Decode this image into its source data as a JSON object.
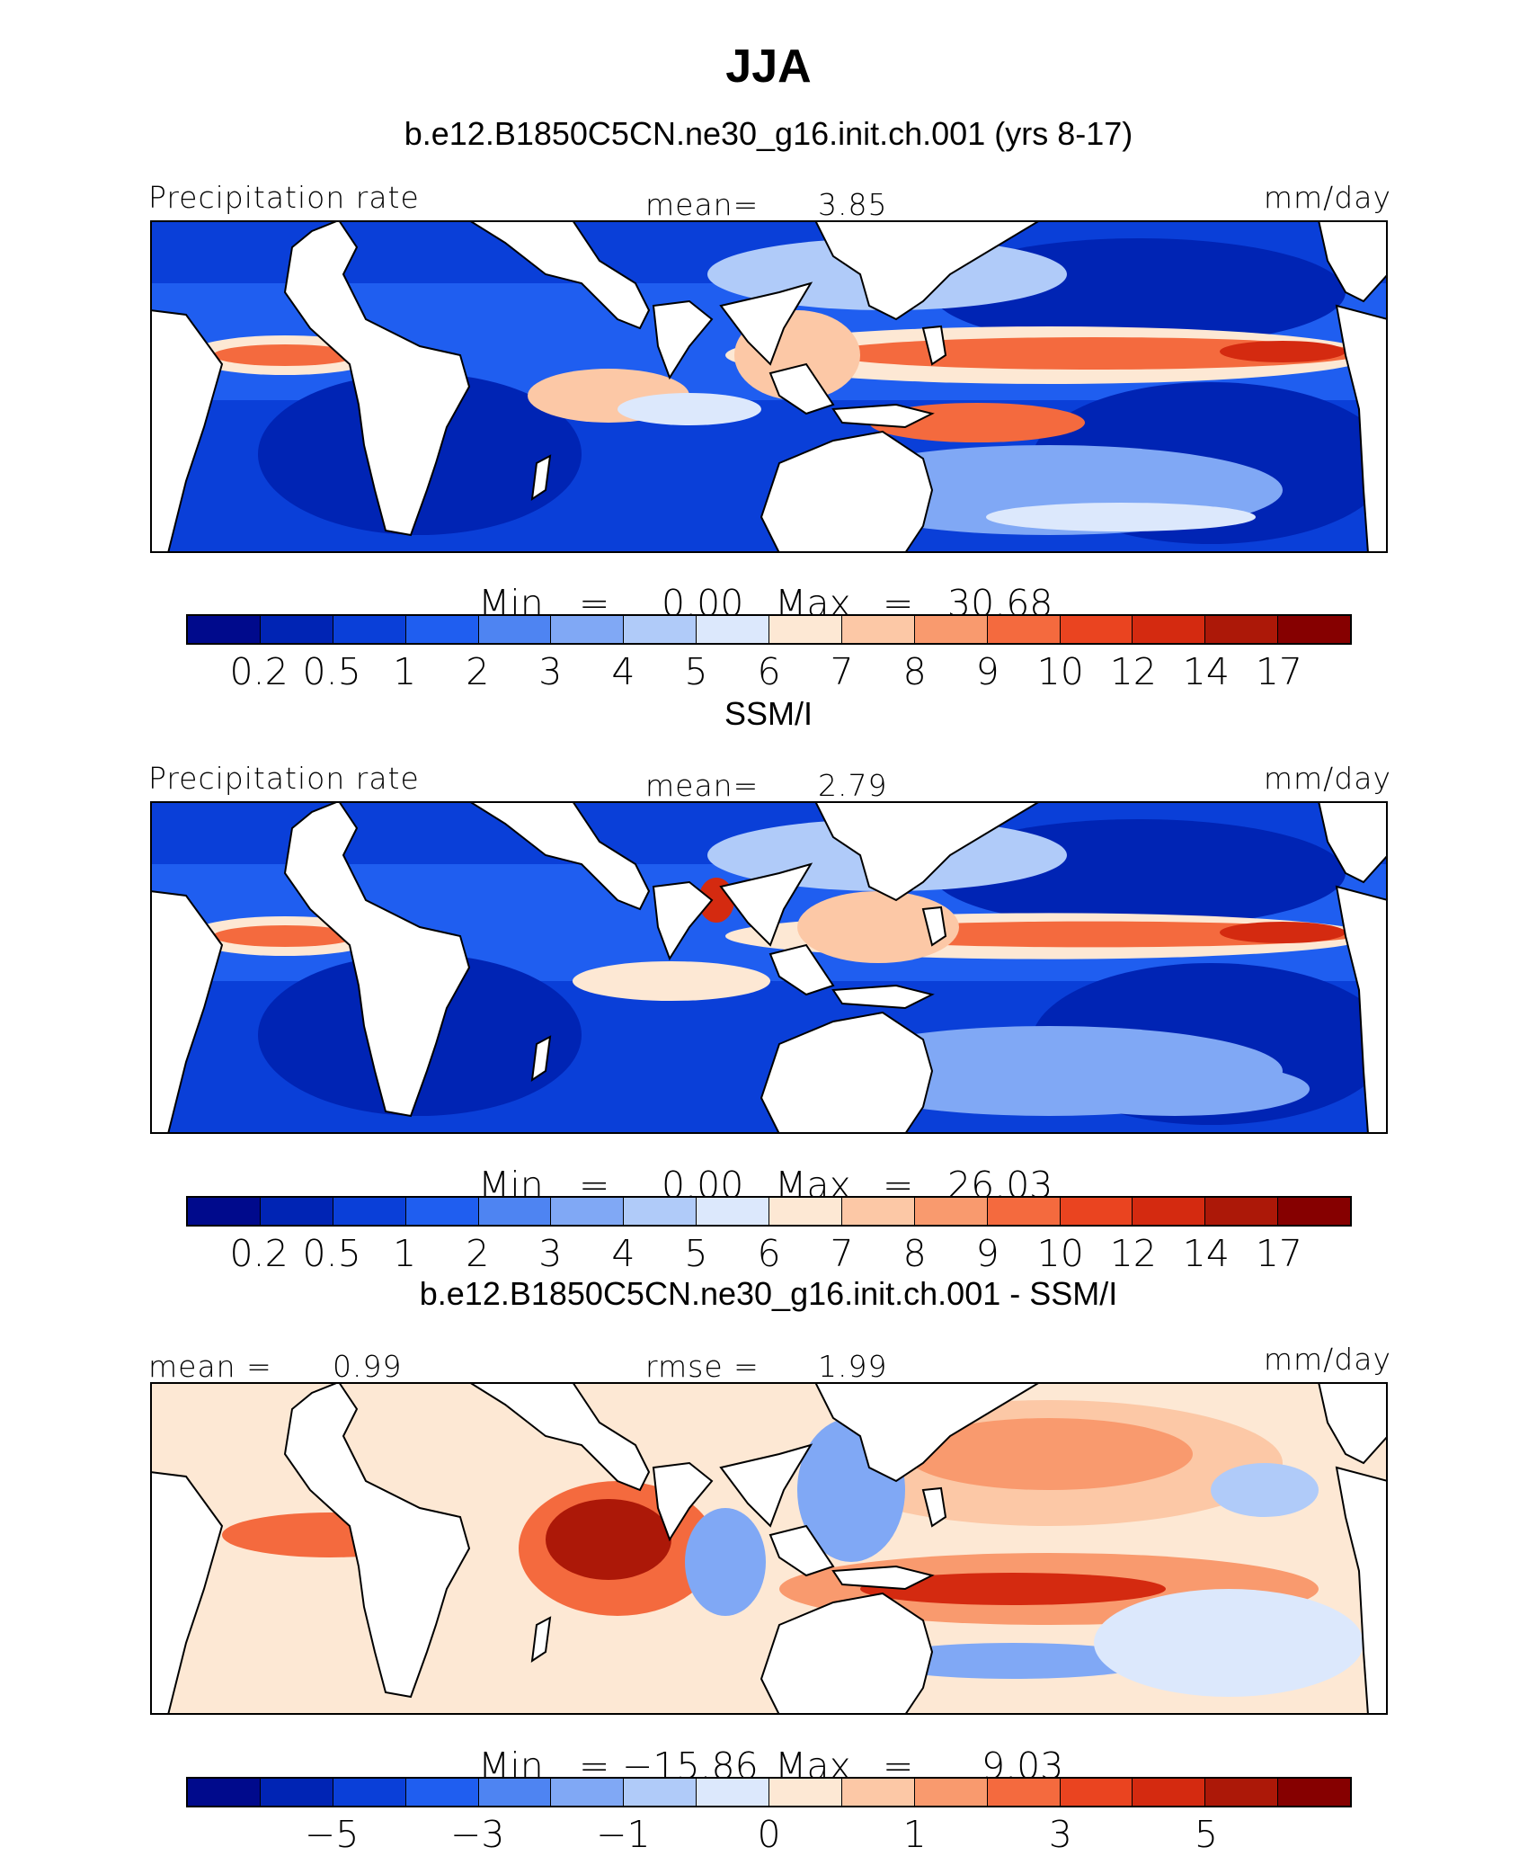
{
  "title": "JJA",
  "panels": [
    {
      "subtitle": "b.e12.B1850C5CN.ne30_g16.init.ch.001 (yrs 8-17)",
      "left_label": "Precipitation rate",
      "center_label": "mean=",
      "center_value": "3.85",
      "right_label": "mm/day",
      "min_label": "Min",
      "min_eq": "=",
      "min_value": "0.00",
      "max_label": "Max",
      "max_eq": "=",
      "max_value": "30.68",
      "tick_labels": [
        "0.2",
        "0.5",
        "1",
        "2",
        "3",
        "4",
        "5",
        "6",
        "7",
        "8",
        "9",
        "10",
        "12",
        "14",
        "17"
      ],
      "palette": "precip"
    },
    {
      "subtitle": "SSM/I",
      "left_label": "Precipitation rate",
      "center_label": "mean=",
      "center_value": "2.79",
      "right_label": "mm/day",
      "min_label": "Min",
      "min_eq": "=",
      "min_value": "0.00",
      "max_label": "Max",
      "max_eq": "=",
      "max_value": "26.03",
      "tick_labels": [
        "0.2",
        "0.5",
        "1",
        "2",
        "3",
        "4",
        "5",
        "6",
        "7",
        "8",
        "9",
        "10",
        "12",
        "14",
        "17"
      ],
      "palette": "precip"
    },
    {
      "subtitle": "b.e12.B1850C5CN.ne30_g16.init.ch.001 - SSM/I",
      "left_label": "mean =",
      "left_value": "0.99",
      "center_label": "rmse =",
      "center_value": "1.99",
      "right_label": "mm/day",
      "min_label": "Min",
      "min_eq": "=",
      "min_value": "−15.86",
      "max_label": "Max",
      "max_eq": "=",
      "max_value": "9.03",
      "tick_labels": [
        "−5",
        "−3",
        "−1",
        "0",
        "1",
        "3",
        "5"
      ],
      "palette": "diff"
    }
  ],
  "colorbar_colors": [
    "#000a8c",
    "#0024b4",
    "#0a3fd8",
    "#1f5ef0",
    "#4e84f2",
    "#80a8f5",
    "#b0cbf9",
    "#dce8fc",
    "#fde8d4",
    "#fcc8a6",
    "#f99a6e",
    "#f46a3e",
    "#ea4420",
    "#d42a10",
    "#ac1808",
    "#860000"
  ],
  "colors": {
    "ocean_dry": "#0a3fd8",
    "ocean_mid": "#4e84f2",
    "ocean_wet": "#f46a3e",
    "land": "#ffffff",
    "coast": "#000000"
  }
}
